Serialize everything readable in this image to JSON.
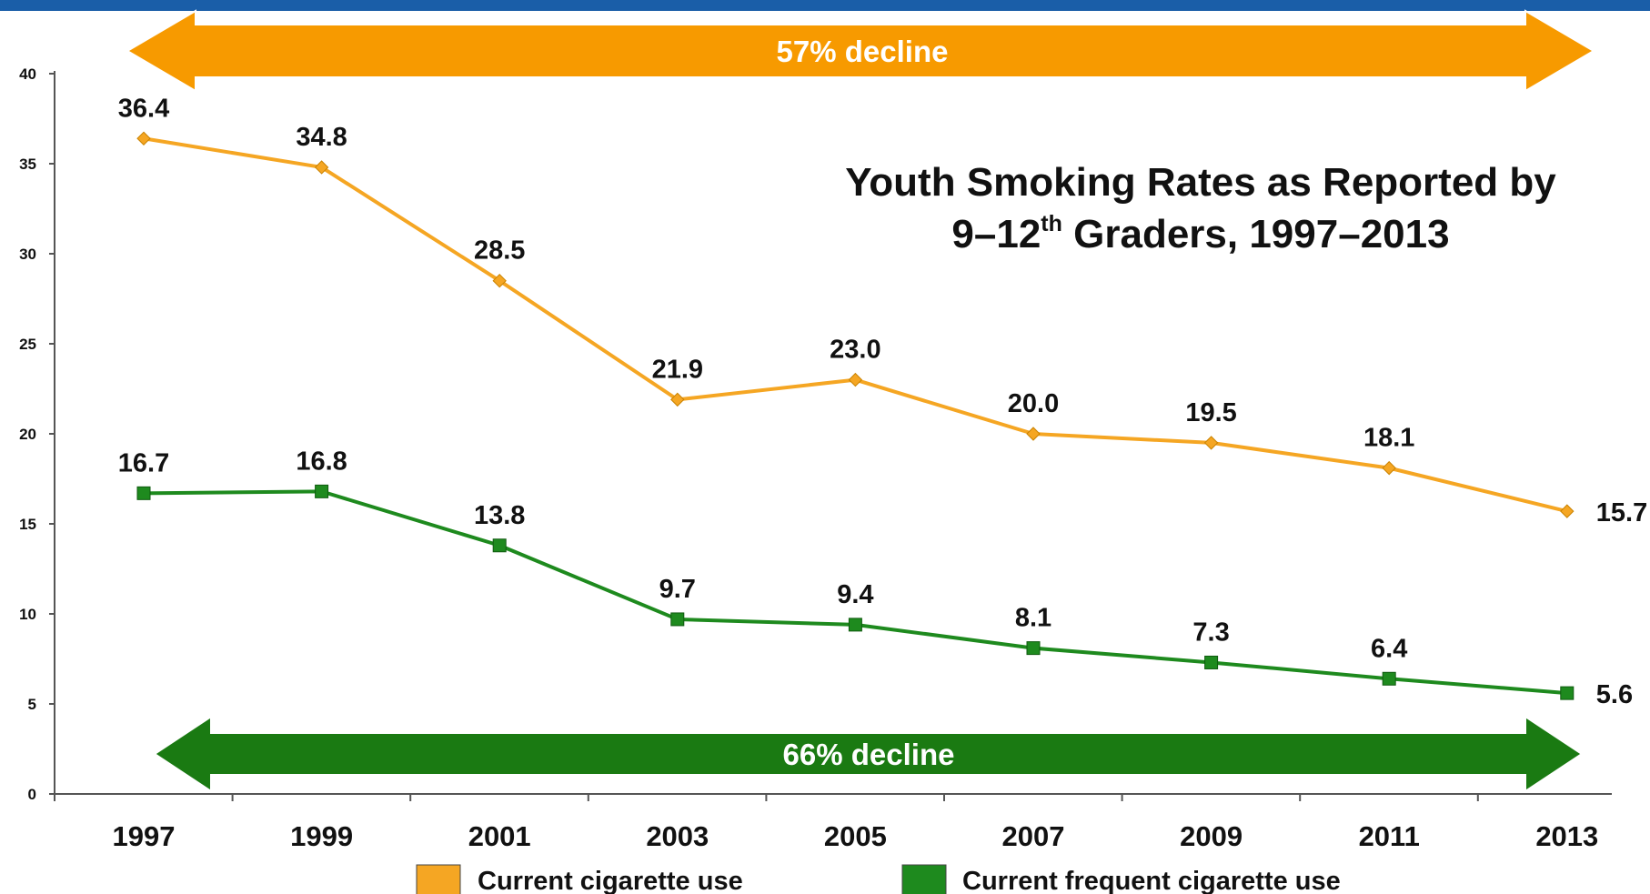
{
  "chart_data": {
    "type": "line",
    "title_pre": "Youth Smoking Rates as Reported by",
    "title_line2_a": "9–12",
    "title_sup": "th",
    "title_line2_b": " Graders, 1997–2013",
    "xlabel": "",
    "ylabel": "",
    "categories": [
      "1997",
      "1999",
      "2001",
      "2003",
      "2005",
      "2007",
      "2009",
      "2011",
      "2013"
    ],
    "yticks": [
      "0",
      "5",
      "10",
      "15",
      "20",
      "25",
      "30",
      "35",
      "40"
    ],
    "ylim": [
      0,
      40
    ],
    "grid": false,
    "legend_position": "bottom",
    "series": [
      {
        "name": "Current cigarette use",
        "values": [
          36.4,
          34.8,
          28.5,
          21.9,
          23.0,
          20.0,
          19.5,
          18.1,
          15.7
        ],
        "labels": [
          "36.4",
          "34.8",
          "28.5",
          "21.9",
          "23.0",
          "20.0",
          "19.5",
          "18.1",
          "15.7"
        ],
        "color": "#f5a623",
        "marker": "diamond"
      },
      {
        "name": "Current frequent cigarette use",
        "values": [
          16.7,
          16.8,
          13.8,
          9.7,
          9.4,
          8.1,
          7.3,
          6.4,
          5.6
        ],
        "labels": [
          "16.7",
          "16.8",
          "13.8",
          "9.7",
          "9.4",
          "8.1",
          "7.3",
          "6.4",
          "5.6"
        ],
        "color": "#1e8a1e",
        "marker": "square"
      }
    ],
    "annotations": [
      {
        "text": "57% decline",
        "color": "#f79a00",
        "series": 0
      },
      {
        "text": "66% decline",
        "color": "#1a7a12",
        "series": 1
      }
    ]
  },
  "colors": {
    "top_bar": "#1a5ea8",
    "axis": "#555555",
    "orange_arrow": "#f79a00",
    "green_arrow": "#1a7a12"
  }
}
